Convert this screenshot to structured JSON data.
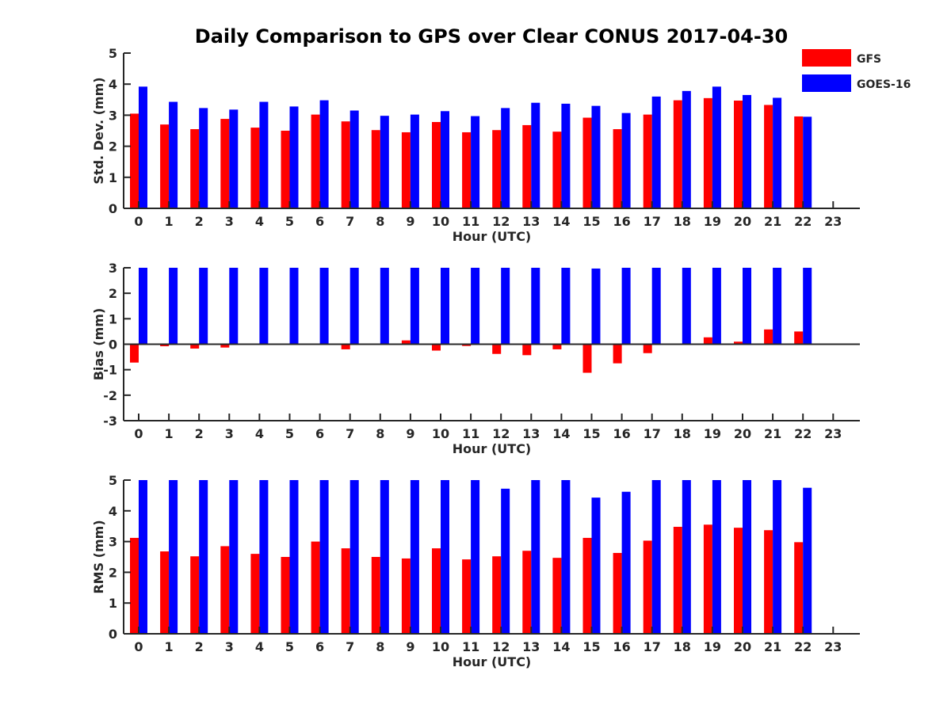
{
  "colors": {
    "gfs": "#ff0000",
    "goes": "#0000ff",
    "axis": "#262626"
  },
  "chart_data": [
    {
      "type": "bar",
      "title": "Daily Comparison to GPS over Clear CONUS 2017-04-30",
      "xlabel": "Hour (UTC)",
      "ylabel": "Std. Dev. (mm)",
      "ylim": [
        0,
        5
      ],
      "yticks": [
        "0",
        "1",
        "2",
        "3",
        "4",
        "5"
      ],
      "categories": [
        "0",
        "1",
        "2",
        "3",
        "4",
        "5",
        "6",
        "7",
        "8",
        "9",
        "10",
        "11",
        "12",
        "13",
        "14",
        "15",
        "16",
        "17",
        "18",
        "19",
        "20",
        "21",
        "22",
        "23"
      ],
      "series": [
        {
          "name": "GFS",
          "values": [
            3.05,
            2.7,
            2.55,
            2.88,
            2.6,
            2.5,
            3.02,
            2.8,
            2.52,
            2.45,
            2.78,
            2.45,
            2.52,
            2.68,
            2.47,
            2.92,
            2.55,
            3.02,
            3.48,
            3.55,
            3.47,
            3.33,
            2.96,
            null
          ]
        },
        {
          "name": "GOES-16",
          "values": [
            3.92,
            3.43,
            3.23,
            3.18,
            3.43,
            3.28,
            3.48,
            3.15,
            2.98,
            3.02,
            3.13,
            2.97,
            3.23,
            3.4,
            3.37,
            3.3,
            3.07,
            3.6,
            3.78,
            3.92,
            3.65,
            3.56,
            2.95,
            null
          ]
        }
      ],
      "legend": {
        "position": "top-right",
        "entries": [
          "GFS",
          "GOES-16"
        ]
      }
    },
    {
      "type": "bar",
      "xlabel": "Hour (UTC)",
      "ylabel": "Bias (mm)",
      "ylim": [
        -3,
        3
      ],
      "yticks": [
        "-3",
        "-2",
        "-1",
        "0",
        "1",
        "2",
        "3"
      ],
      "categories": [
        "0",
        "1",
        "2",
        "3",
        "4",
        "5",
        "6",
        "7",
        "8",
        "9",
        "10",
        "11",
        "12",
        "13",
        "14",
        "15",
        "16",
        "17",
        "18",
        "19",
        "20",
        "21",
        "22",
        "23"
      ],
      "series": [
        {
          "name": "GFS",
          "values": [
            -0.72,
            -0.08,
            -0.17,
            -0.13,
            0.03,
            0.0,
            0.03,
            -0.2,
            0.0,
            0.15,
            -0.25,
            -0.07,
            -0.38,
            -0.43,
            -0.2,
            -1.12,
            -0.75,
            -0.35,
            0.0,
            0.27,
            0.1,
            0.58,
            0.5,
            null
          ]
        },
        {
          "name": "GOES-16",
          "values": [
            3.0,
            3.0,
            3.0,
            3.0,
            3.0,
            3.0,
            3.0,
            3.0,
            3.0,
            3.0,
            3.0,
            3.0,
            3.0,
            3.0,
            3.0,
            2.97,
            3.0,
            3.0,
            3.0,
            3.0,
            3.0,
            3.0,
            3.0,
            null
          ]
        }
      ]
    },
    {
      "type": "bar",
      "xlabel": "Hour (UTC)",
      "ylabel": "RMS (mm)",
      "ylim": [
        0,
        5
      ],
      "yticks": [
        "0",
        "1",
        "2",
        "3",
        "4",
        "5"
      ],
      "categories": [
        "0",
        "1",
        "2",
        "3",
        "4",
        "5",
        "6",
        "7",
        "8",
        "9",
        "10",
        "11",
        "12",
        "13",
        "14",
        "15",
        "16",
        "17",
        "18",
        "19",
        "20",
        "21",
        "22",
        "23"
      ],
      "series": [
        {
          "name": "GFS",
          "values": [
            3.12,
            2.68,
            2.52,
            2.85,
            2.6,
            2.5,
            3.0,
            2.78,
            2.5,
            2.45,
            2.78,
            2.42,
            2.52,
            2.7,
            2.47,
            3.12,
            2.63,
            3.03,
            3.48,
            3.55,
            3.45,
            3.37,
            2.98,
            null
          ]
        },
        {
          "name": "GOES-16",
          "values": [
            5.0,
            5.0,
            5.0,
            5.0,
            5.0,
            5.0,
            5.0,
            5.0,
            5.0,
            5.0,
            5.0,
            5.0,
            4.72,
            5.0,
            5.0,
            4.43,
            4.62,
            5.0,
            5.0,
            5.0,
            5.0,
            5.0,
            4.75,
            null
          ]
        }
      ]
    }
  ]
}
